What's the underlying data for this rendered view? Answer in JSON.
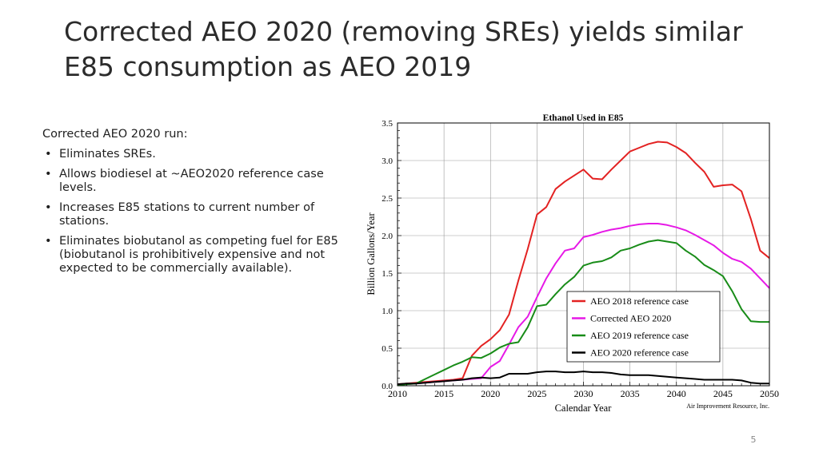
{
  "slide": {
    "title": "Corrected AEO 2020 (removing SREs) yields similar E85 consumption as AEO 2019",
    "lead": "Corrected AEO 2020 run:",
    "bullets": [
      "Eliminates SREs.",
      "Allows biodiesel at ~AEO2020 reference case levels.",
      "Increases E85 stations to current number of stations.",
      "Eliminates biobutanol as competing fuel for E85 (biobutanol is prohibitively expensive and not expected to be commercially available)."
    ],
    "bullet_glyph": "•",
    "page_number": "5"
  },
  "chart_data": {
    "type": "line",
    "title": "Ethanol Used in E85",
    "xlabel": "Calendar Year",
    "ylabel": "Billion Gallons/Year",
    "source_note": "Air Improvement Resource, Inc.",
    "xlim": [
      2010,
      2050
    ],
    "ylim": [
      0,
      3.5
    ],
    "xticks": [
      "2010",
      "2015",
      "2020",
      "2025",
      "2030",
      "2035",
      "2040",
      "2045",
      "2050"
    ],
    "yticks": [
      "0.0",
      "0.5",
      "1.0",
      "1.5",
      "2.0",
      "2.5",
      "3.0",
      "3.5"
    ],
    "grid": true,
    "legend_position": "lower-right",
    "series": [
      {
        "name": "AEO 2018 reference case",
        "color": "#e32222",
        "x": [
          2010,
          2011,
          2012,
          2013,
          2014,
          2015,
          2016,
          2017,
          2018,
          2019,
          2020,
          2021,
          2022,
          2023,
          2024,
          2025,
          2026,
          2027,
          2028,
          2029,
          2030,
          2031,
          2032,
          2033,
          2034,
          2035,
          2036,
          2037,
          2038,
          2039,
          2040,
          2041,
          2042,
          2043,
          2044,
          2045,
          2046,
          2047,
          2048,
          2049,
          2050
        ],
        "y": [
          0.02,
          0.03,
          0.04,
          0.05,
          0.06,
          0.07,
          0.08,
          0.1,
          0.4,
          0.53,
          0.62,
          0.74,
          0.95,
          1.4,
          1.82,
          2.28,
          2.38,
          2.62,
          2.72,
          2.8,
          2.88,
          2.76,
          2.75,
          2.88,
          3.0,
          3.12,
          3.17,
          3.22,
          3.25,
          3.24,
          3.18,
          3.1,
          2.97,
          2.85,
          2.65,
          2.67,
          2.68,
          2.59,
          2.22,
          1.8,
          1.7
        ]
      },
      {
        "name": "Corrected AEO 2020",
        "color": "#e619e6",
        "x": [
          2010,
          2011,
          2012,
          2013,
          2014,
          2015,
          2016,
          2017,
          2018,
          2019,
          2020,
          2021,
          2022,
          2023,
          2024,
          2025,
          2026,
          2027,
          2028,
          2029,
          2030,
          2031,
          2032,
          2033,
          2034,
          2035,
          2036,
          2037,
          2038,
          2039,
          2040,
          2041,
          2042,
          2043,
          2044,
          2045,
          2046,
          2047,
          2048,
          2049,
          2050
        ],
        "y": [
          0.02,
          0.02,
          0.03,
          0.04,
          0.05,
          0.06,
          0.07,
          0.08,
          0.09,
          0.1,
          0.25,
          0.33,
          0.55,
          0.78,
          0.92,
          1.18,
          1.43,
          1.63,
          1.8,
          1.83,
          1.98,
          2.01,
          2.05,
          2.08,
          2.1,
          2.13,
          2.15,
          2.16,
          2.16,
          2.14,
          2.11,
          2.07,
          2.01,
          1.94,
          1.87,
          1.77,
          1.69,
          1.65,
          1.56,
          1.43,
          1.3
        ]
      },
      {
        "name": "AEO 2019 reference case",
        "color": "#188c18",
        "x": [
          2010,
          2011,
          2012,
          2013,
          2014,
          2015,
          2016,
          2017,
          2018,
          2019,
          2020,
          2021,
          2022,
          2023,
          2024,
          2025,
          2026,
          2027,
          2028,
          2029,
          2030,
          2031,
          2032,
          2033,
          2034,
          2035,
          2036,
          2037,
          2038,
          2039,
          2040,
          2041,
          2042,
          2043,
          2044,
          2045,
          2046,
          2047,
          2048,
          2049,
          2050
        ],
        "y": [
          0.01,
          0.02,
          0.03,
          0.09,
          0.15,
          0.21,
          0.27,
          0.32,
          0.38,
          0.37,
          0.43,
          0.51,
          0.56,
          0.58,
          0.78,
          1.06,
          1.08,
          1.22,
          1.35,
          1.45,
          1.6,
          1.64,
          1.66,
          1.71,
          1.8,
          1.83,
          1.88,
          1.92,
          1.94,
          1.92,
          1.9,
          1.8,
          1.72,
          1.61,
          1.54,
          1.46,
          1.26,
          1.02,
          0.86,
          0.85,
          0.85
        ]
      },
      {
        "name": "AEO 2020 reference case",
        "color": "#000000",
        "x": [
          2010,
          2011,
          2012,
          2013,
          2014,
          2015,
          2016,
          2017,
          2018,
          2019,
          2020,
          2021,
          2022,
          2023,
          2024,
          2025,
          2026,
          2027,
          2028,
          2029,
          2030,
          2031,
          2032,
          2033,
          2034,
          2035,
          2036,
          2037,
          2038,
          2039,
          2040,
          2041,
          2042,
          2043,
          2044,
          2045,
          2046,
          2047,
          2048,
          2049,
          2050
        ],
        "y": [
          0.02,
          0.03,
          0.03,
          0.04,
          0.05,
          0.06,
          0.07,
          0.08,
          0.1,
          0.11,
          0.1,
          0.11,
          0.16,
          0.16,
          0.16,
          0.18,
          0.19,
          0.19,
          0.18,
          0.18,
          0.19,
          0.18,
          0.18,
          0.17,
          0.15,
          0.14,
          0.14,
          0.14,
          0.13,
          0.12,
          0.11,
          0.1,
          0.09,
          0.08,
          0.08,
          0.08,
          0.08,
          0.07,
          0.04,
          0.03,
          0.03
        ]
      }
    ]
  }
}
